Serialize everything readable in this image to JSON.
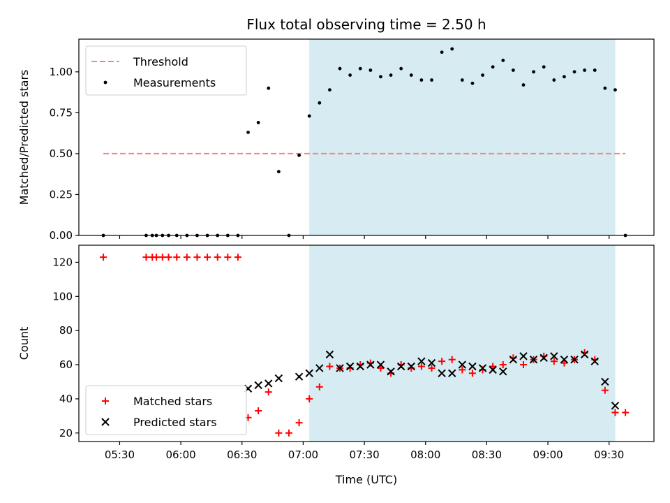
{
  "chart_data": {
    "title": "Flux total observing time = 2.50 h",
    "xlabel": "Time (UTC)",
    "xticks": [
      "05:30",
      "06:00",
      "06:30",
      "07:00",
      "07:30",
      "08:00",
      "08:30",
      "09:00",
      "09:30"
    ],
    "xlim_minutes": [
      310,
      592
    ],
    "shaded_span": {
      "from": "07:03",
      "to": "09:33",
      "color": "#add8e6"
    },
    "panels": [
      {
        "type": "scatter",
        "ylabel": "Matched/Predicted stars",
        "ylim": [
          0,
          1.2
        ],
        "yticks": [
          "0.00",
          "0.25",
          "0.50",
          "0.75",
          "1.00"
        ],
        "legend": "upper-left",
        "series": [
          {
            "name": "Threshold",
            "kind": "dashed-line",
            "color": "#ff7f7f",
            "x": [
              "05:22",
              "09:38"
            ],
            "y": [
              0.5,
              0.5
            ]
          },
          {
            "name": "Measurements",
            "kind": "dot",
            "color": "#000000",
            "x": [
              "05:22",
              "05:43",
              "05:46",
              "05:48",
              "05:51",
              "05:54",
              "05:58",
              "06:03",
              "06:08",
              "06:13",
              "06:18",
              "06:23",
              "06:28",
              "06:33",
              "06:38",
              "06:43",
              "06:48",
              "06:53",
              "06:58",
              "07:03",
              "07:08",
              "07:13",
              "07:18",
              "07:23",
              "07:28",
              "07:33",
              "07:38",
              "07:43",
              "07:48",
              "07:53",
              "07:58",
              "08:03",
              "08:08",
              "08:13",
              "08:18",
              "08:23",
              "08:28",
              "08:33",
              "08:38",
              "08:43",
              "08:48",
              "08:53",
              "08:58",
              "09:03",
              "09:08",
              "09:13",
              "09:18",
              "09:23",
              "09:28",
              "09:33",
              "09:38"
            ],
            "y": [
              0.0,
              0.0,
              0.0,
              0.0,
              0.0,
              0.0,
              0.0,
              0.0,
              0.0,
              0.0,
              0.0,
              0.0,
              0.0,
              0.63,
              0.69,
              0.9,
              0.39,
              0.0,
              0.49,
              0.73,
              0.81,
              0.89,
              1.02,
              0.98,
              1.02,
              1.01,
              0.97,
              0.98,
              1.02,
              0.98,
              0.95,
              0.95,
              1.12,
              1.14,
              0.95,
              0.93,
              0.98,
              1.03,
              1.07,
              1.01,
              0.92,
              1.0,
              1.03,
              0.95,
              0.97,
              1.0,
              1.01,
              1.01,
              0.9,
              0.89,
              0.0
            ]
          }
        ]
      },
      {
        "type": "scatter",
        "ylabel": "Count",
        "ylim": [
          15,
          130
        ],
        "yticks": [
          "20",
          "40",
          "60",
          "80",
          "100",
          "120"
        ],
        "legend": "lower-left",
        "series": [
          {
            "name": "Matched stars",
            "kind": "plus",
            "color": "#ff0000",
            "x": [
              "05:22",
              "05:43",
              "05:46",
              "05:48",
              "05:51",
              "05:54",
              "05:58",
              "06:03",
              "06:08",
              "06:13",
              "06:18",
              "06:23",
              "06:28",
              "06:33",
              "06:38",
              "06:43",
              "06:48",
              "06:53",
              "06:58",
              "07:03",
              "07:08",
              "07:13",
              "07:18",
              "07:23",
              "07:28",
              "07:33",
              "07:38",
              "07:43",
              "07:48",
              "07:53",
              "07:58",
              "08:03",
              "08:08",
              "08:13",
              "08:18",
              "08:23",
              "08:28",
              "08:33",
              "08:38",
              "08:43",
              "08:48",
              "08:53",
              "08:58",
              "09:03",
              "09:08",
              "09:13",
              "09:18",
              "09:23",
              "09:28",
              "09:33",
              "09:38"
            ],
            "y": [
              123,
              123,
              123,
              123,
              123,
              123,
              123,
              123,
              123,
              123,
              123,
              123,
              123,
              29,
              33,
              44,
              20,
              20,
              26,
              40,
              47,
              59,
              58,
              58,
              60,
              61,
              58,
              55,
              60,
              58,
              59,
              58,
              62,
              63,
              57,
              55,
              57,
              59,
              60,
              64,
              60,
              63,
              65,
              62,
              61,
              63,
              67,
              63,
              45,
              32,
              32
            ]
          },
          {
            "name": "Predicted stars",
            "kind": "x",
            "color": "#000000",
            "x": [
              "06:33",
              "06:38",
              "06:43",
              "06:48",
              "06:58",
              "07:03",
              "07:08",
              "07:13",
              "07:18",
              "07:23",
              "07:28",
              "07:33",
              "07:38",
              "07:43",
              "07:48",
              "07:53",
              "07:58",
              "08:03",
              "08:08",
              "08:13",
              "08:18",
              "08:23",
              "08:28",
              "08:33",
              "08:38",
              "08:43",
              "08:48",
              "08:53",
              "08:58",
              "09:03",
              "09:08",
              "09:13",
              "09:18",
              "09:23",
              "09:28",
              "09:33"
            ],
            "y": [
              46,
              48,
              49,
              52,
              53,
              55,
              58,
              66,
              58,
              59,
              59,
              60,
              60,
              56,
              59,
              59,
              62,
              61,
              55,
              55,
              60,
              59,
              58,
              57,
              56,
              63,
              65,
              63,
              64,
              65,
              63,
              63,
              66,
              62,
              50,
              36
            ]
          }
        ]
      }
    ]
  }
}
